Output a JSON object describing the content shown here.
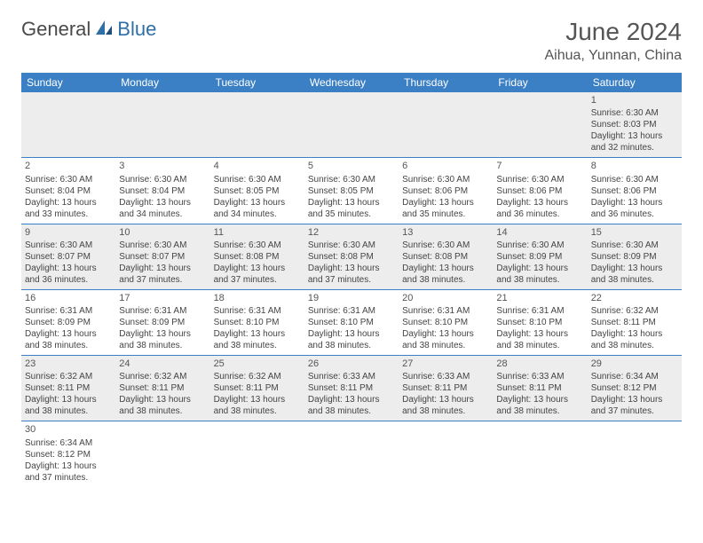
{
  "logo": {
    "general": "General",
    "blue": "Blue"
  },
  "title": "June 2024",
  "location": "Aihua, Yunnan, China",
  "colors": {
    "header_bg": "#3b7fc4",
    "header_text": "#ffffff",
    "row_border": "#3b7fc4",
    "shaded_bg": "#ededed",
    "text": "#444444",
    "title_text": "#555555",
    "logo_blue": "#2f6fa8"
  },
  "day_headers": [
    "Sunday",
    "Monday",
    "Tuesday",
    "Wednesday",
    "Thursday",
    "Friday",
    "Saturday"
  ],
  "weeks": [
    [
      null,
      null,
      null,
      null,
      null,
      null,
      {
        "n": "1",
        "sunrise": "Sunrise: 6:30 AM",
        "sunset": "Sunset: 8:03 PM",
        "daylight": "Daylight: 13 hours and 32 minutes."
      }
    ],
    [
      {
        "n": "2",
        "sunrise": "Sunrise: 6:30 AM",
        "sunset": "Sunset: 8:04 PM",
        "daylight": "Daylight: 13 hours and 33 minutes."
      },
      {
        "n": "3",
        "sunrise": "Sunrise: 6:30 AM",
        "sunset": "Sunset: 8:04 PM",
        "daylight": "Daylight: 13 hours and 34 minutes."
      },
      {
        "n": "4",
        "sunrise": "Sunrise: 6:30 AM",
        "sunset": "Sunset: 8:05 PM",
        "daylight": "Daylight: 13 hours and 34 minutes."
      },
      {
        "n": "5",
        "sunrise": "Sunrise: 6:30 AM",
        "sunset": "Sunset: 8:05 PM",
        "daylight": "Daylight: 13 hours and 35 minutes."
      },
      {
        "n": "6",
        "sunrise": "Sunrise: 6:30 AM",
        "sunset": "Sunset: 8:06 PM",
        "daylight": "Daylight: 13 hours and 35 minutes."
      },
      {
        "n": "7",
        "sunrise": "Sunrise: 6:30 AM",
        "sunset": "Sunset: 8:06 PM",
        "daylight": "Daylight: 13 hours and 36 minutes."
      },
      {
        "n": "8",
        "sunrise": "Sunrise: 6:30 AM",
        "sunset": "Sunset: 8:06 PM",
        "daylight": "Daylight: 13 hours and 36 minutes."
      }
    ],
    [
      {
        "n": "9",
        "sunrise": "Sunrise: 6:30 AM",
        "sunset": "Sunset: 8:07 PM",
        "daylight": "Daylight: 13 hours and 36 minutes."
      },
      {
        "n": "10",
        "sunrise": "Sunrise: 6:30 AM",
        "sunset": "Sunset: 8:07 PM",
        "daylight": "Daylight: 13 hours and 37 minutes."
      },
      {
        "n": "11",
        "sunrise": "Sunrise: 6:30 AM",
        "sunset": "Sunset: 8:08 PM",
        "daylight": "Daylight: 13 hours and 37 minutes."
      },
      {
        "n": "12",
        "sunrise": "Sunrise: 6:30 AM",
        "sunset": "Sunset: 8:08 PM",
        "daylight": "Daylight: 13 hours and 37 minutes."
      },
      {
        "n": "13",
        "sunrise": "Sunrise: 6:30 AM",
        "sunset": "Sunset: 8:08 PM",
        "daylight": "Daylight: 13 hours and 38 minutes."
      },
      {
        "n": "14",
        "sunrise": "Sunrise: 6:30 AM",
        "sunset": "Sunset: 8:09 PM",
        "daylight": "Daylight: 13 hours and 38 minutes."
      },
      {
        "n": "15",
        "sunrise": "Sunrise: 6:30 AM",
        "sunset": "Sunset: 8:09 PM",
        "daylight": "Daylight: 13 hours and 38 minutes."
      }
    ],
    [
      {
        "n": "16",
        "sunrise": "Sunrise: 6:31 AM",
        "sunset": "Sunset: 8:09 PM",
        "daylight": "Daylight: 13 hours and 38 minutes."
      },
      {
        "n": "17",
        "sunrise": "Sunrise: 6:31 AM",
        "sunset": "Sunset: 8:09 PM",
        "daylight": "Daylight: 13 hours and 38 minutes."
      },
      {
        "n": "18",
        "sunrise": "Sunrise: 6:31 AM",
        "sunset": "Sunset: 8:10 PM",
        "daylight": "Daylight: 13 hours and 38 minutes."
      },
      {
        "n": "19",
        "sunrise": "Sunrise: 6:31 AM",
        "sunset": "Sunset: 8:10 PM",
        "daylight": "Daylight: 13 hours and 38 minutes."
      },
      {
        "n": "20",
        "sunrise": "Sunrise: 6:31 AM",
        "sunset": "Sunset: 8:10 PM",
        "daylight": "Daylight: 13 hours and 38 minutes."
      },
      {
        "n": "21",
        "sunrise": "Sunrise: 6:31 AM",
        "sunset": "Sunset: 8:10 PM",
        "daylight": "Daylight: 13 hours and 38 minutes."
      },
      {
        "n": "22",
        "sunrise": "Sunrise: 6:32 AM",
        "sunset": "Sunset: 8:11 PM",
        "daylight": "Daylight: 13 hours and 38 minutes."
      }
    ],
    [
      {
        "n": "23",
        "sunrise": "Sunrise: 6:32 AM",
        "sunset": "Sunset: 8:11 PM",
        "daylight": "Daylight: 13 hours and 38 minutes."
      },
      {
        "n": "24",
        "sunrise": "Sunrise: 6:32 AM",
        "sunset": "Sunset: 8:11 PM",
        "daylight": "Daylight: 13 hours and 38 minutes."
      },
      {
        "n": "25",
        "sunrise": "Sunrise: 6:32 AM",
        "sunset": "Sunset: 8:11 PM",
        "daylight": "Daylight: 13 hours and 38 minutes."
      },
      {
        "n": "26",
        "sunrise": "Sunrise: 6:33 AM",
        "sunset": "Sunset: 8:11 PM",
        "daylight": "Daylight: 13 hours and 38 minutes."
      },
      {
        "n": "27",
        "sunrise": "Sunrise: 6:33 AM",
        "sunset": "Sunset: 8:11 PM",
        "daylight": "Daylight: 13 hours and 38 minutes."
      },
      {
        "n": "28",
        "sunrise": "Sunrise: 6:33 AM",
        "sunset": "Sunset: 8:11 PM",
        "daylight": "Daylight: 13 hours and 38 minutes."
      },
      {
        "n": "29",
        "sunrise": "Sunrise: 6:34 AM",
        "sunset": "Sunset: 8:12 PM",
        "daylight": "Daylight: 13 hours and 37 minutes."
      }
    ],
    [
      {
        "n": "30",
        "sunrise": "Sunrise: 6:34 AM",
        "sunset": "Sunset: 8:12 PM",
        "daylight": "Daylight: 13 hours and 37 minutes."
      },
      null,
      null,
      null,
      null,
      null,
      null
    ]
  ]
}
